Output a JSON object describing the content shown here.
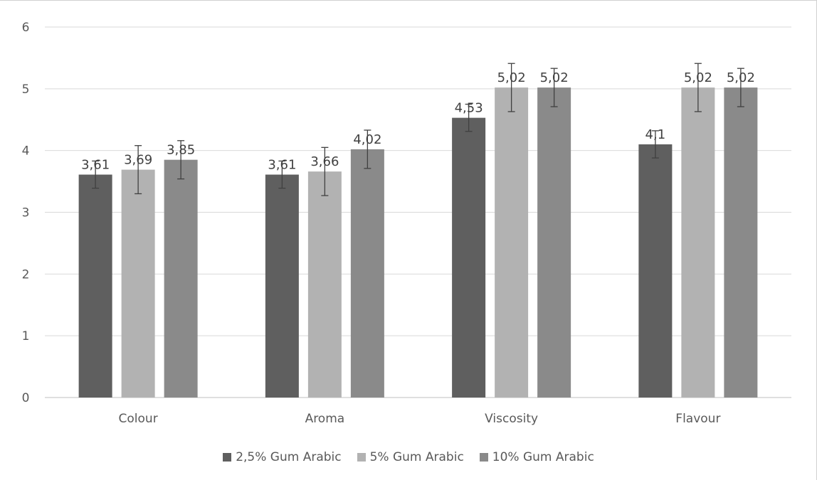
{
  "chart_data": {
    "type": "bar",
    "categories": [
      "Colour",
      "Aroma",
      "Viscosity",
      "Flavour"
    ],
    "series": [
      {
        "name": "2,5% Gum Arabic",
        "values": [
          3.61,
          3.61,
          4.53,
          4.1
        ],
        "labels": [
          "3,61",
          "3,61",
          "4,53",
          "4,1"
        ],
        "errors": [
          0.22,
          0.22,
          0.22,
          0.22
        ],
        "color": "#5f5f5f"
      },
      {
        "name": "5% Gum Arabic",
        "values": [
          3.69,
          3.66,
          5.02,
          5.02
        ],
        "labels": [
          "3,69",
          "3,66",
          "5,02",
          "5,02"
        ],
        "errors": [
          0.39,
          0.39,
          0.39,
          0.39
        ],
        "color": "#b2b2b2"
      },
      {
        "name": "10% Gum Arabic",
        "values": [
          3.85,
          4.02,
          5.02,
          5.02
        ],
        "labels": [
          "3,85",
          "4,02",
          "5,02",
          "5,02"
        ],
        "errors": [
          0.31,
          0.31,
          0.31,
          0.31
        ],
        "color": "#8a8a8a"
      }
    ],
    "yticks": [
      "0",
      "1",
      "2",
      "3",
      "4",
      "5",
      "6"
    ],
    "ylim": [
      0,
      6
    ],
    "grid": true,
    "legend_position": "bottom",
    "title": "",
    "xlabel": "",
    "ylabel": ""
  }
}
